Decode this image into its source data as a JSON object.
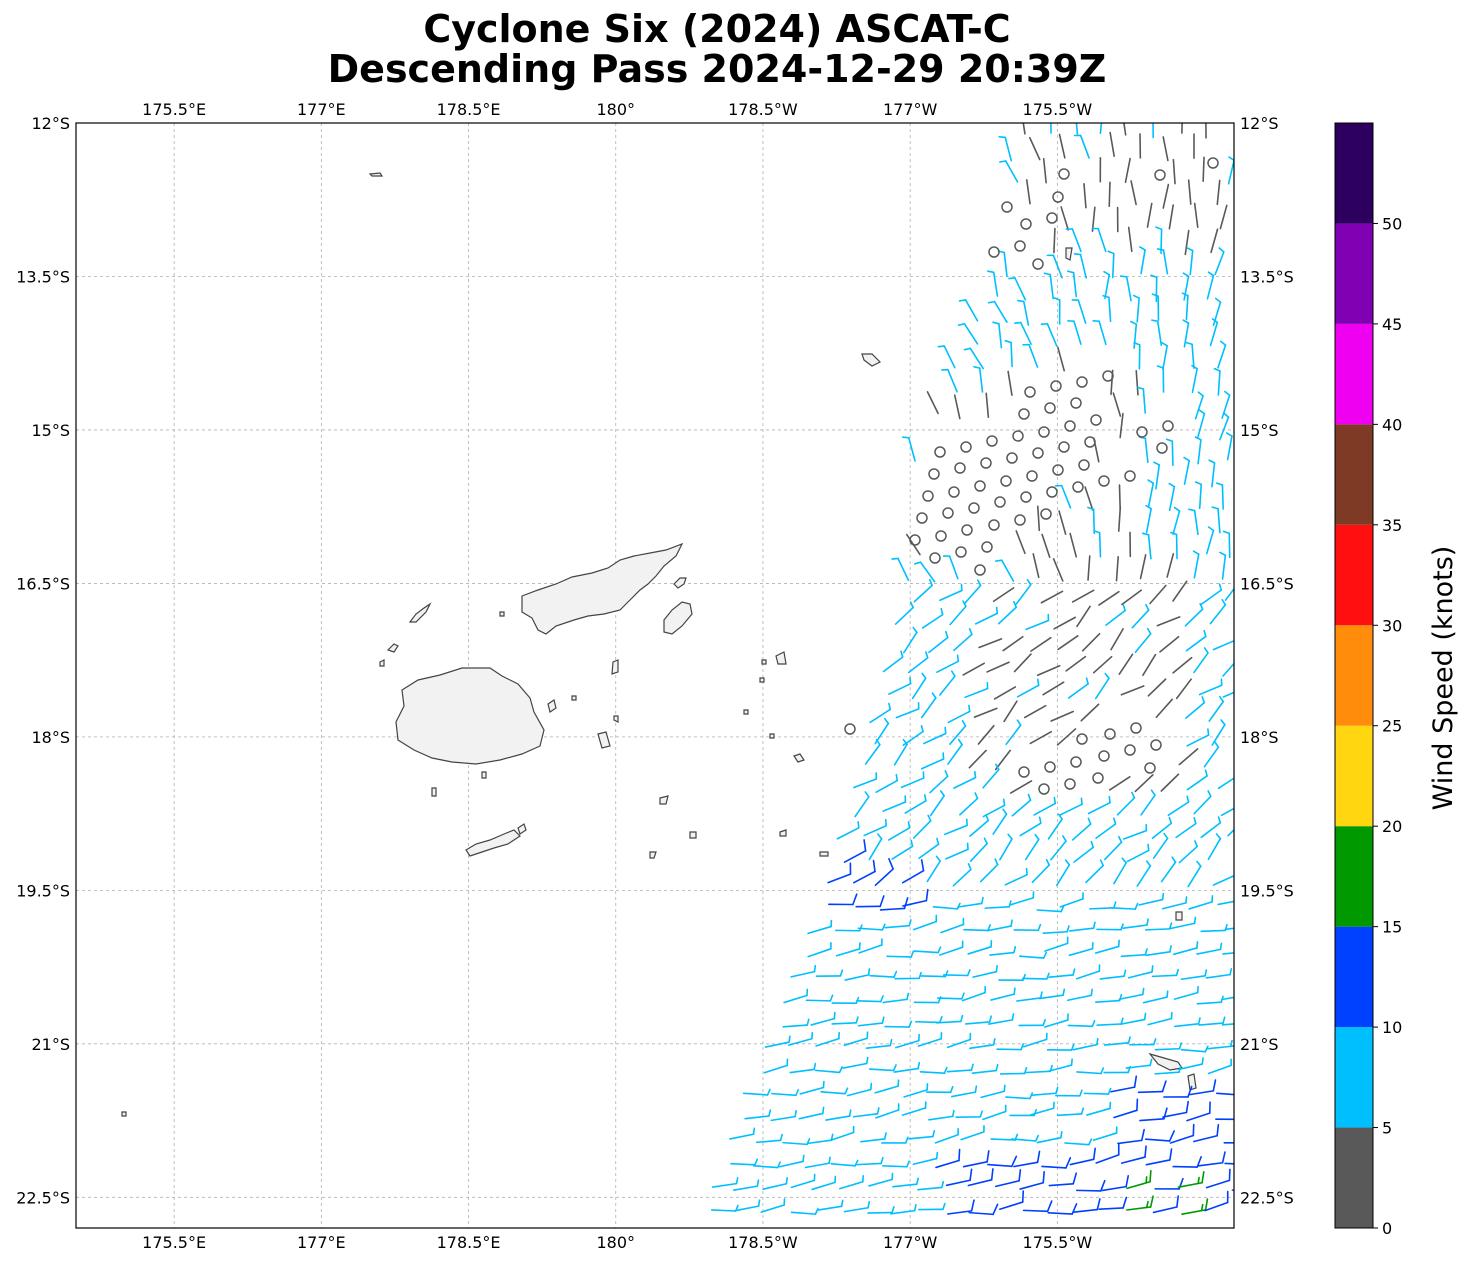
{
  "title": {
    "line1": "Cyclone Six (2024) ASCAT-C",
    "line2": "Descending Pass 2024-12-29 20:39Z"
  },
  "map": {
    "lon_range": [
      174.5,
      186.3
    ],
    "lat_range": [
      -22.8,
      -12.0
    ],
    "lon_ticks": [
      {
        "value": 175.5,
        "label": "175.5°E"
      },
      {
        "value": 177.0,
        "label": "177°E"
      },
      {
        "value": 178.5,
        "label": "178.5°E"
      },
      {
        "value": 180.0,
        "label": "180°"
      },
      {
        "value": 181.5,
        "label": "178.5°W"
      },
      {
        "value": 183.0,
        "label": "177°W"
      },
      {
        "value": 184.5,
        "label": "175.5°W"
      }
    ],
    "lat_ticks": [
      {
        "value": -12.0,
        "label": "12°S"
      },
      {
        "value": -13.5,
        "label": "13.5°S"
      },
      {
        "value": -15.0,
        "label": "15°S"
      },
      {
        "value": -16.5,
        "label": "16.5°S"
      },
      {
        "value": -18.0,
        "label": "18°S"
      },
      {
        "value": -19.5,
        "label": "19.5°S"
      },
      {
        "value": -21.0,
        "label": "21°S"
      },
      {
        "value": -22.5,
        "label": "22.5°S"
      }
    ],
    "grid": true,
    "coastline_color": "#444444",
    "land_fill": "#f2f2f2"
  },
  "colorbar": {
    "label": "Wind Speed (knots)",
    "bins": [
      {
        "from": 0,
        "to": 5,
        "color": "#595959"
      },
      {
        "from": 5,
        "to": 10,
        "color": "#00bfff"
      },
      {
        "from": 10,
        "to": 15,
        "color": "#0040ff"
      },
      {
        "from": 15,
        "to": 20,
        "color": "#009a00"
      },
      {
        "from": 20,
        "to": 25,
        "color": "#ffd60f"
      },
      {
        "from": 25,
        "to": 30,
        "color": "#ff8c0a"
      },
      {
        "from": 30,
        "to": 35,
        "color": "#ff0f0f"
      },
      {
        "from": 35,
        "to": 40,
        "color": "#7f3a26"
      },
      {
        "from": 40,
        "to": 45,
        "color": "#f000f0"
      },
      {
        "from": 45,
        "to": 50,
        "color": "#8000b3"
      },
      {
        "from": 50,
        "to": 55,
        "color": "#2d0060"
      }
    ],
    "ticks": [
      "0",
      "5",
      "10",
      "15",
      "20",
      "25",
      "30",
      "35",
      "40",
      "45",
      "50"
    ]
  }
}
